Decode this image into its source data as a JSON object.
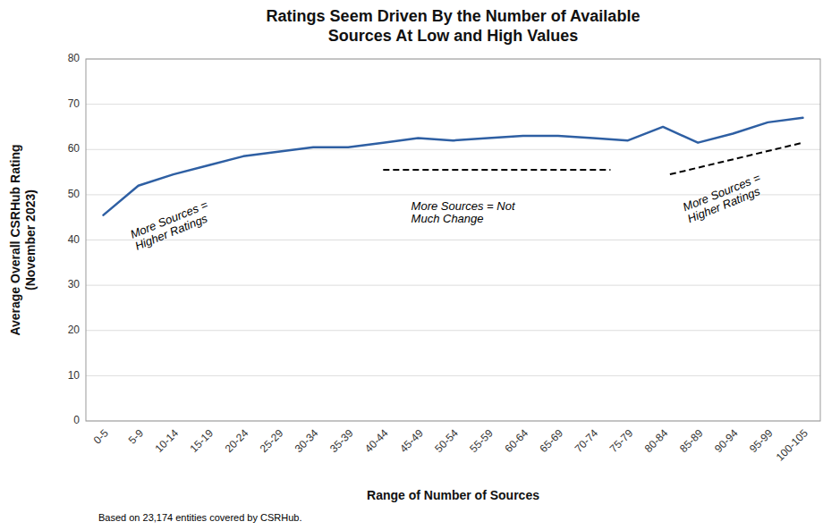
{
  "chart_data": {
    "type": "line",
    "title": "Ratings Seem Driven By the Number of Available\nSources At Low and High Values",
    "x_label": "Range of Number of Sources",
    "y_label": "Average Overall CSRHub Rating\n(November 2023)",
    "footnote": "Based on 23,174 entities covered by CSRHub.",
    "categories": [
      "0-5",
      "5-9",
      "10-14",
      "15-19",
      "20-24",
      "25-29",
      "30-34",
      "35-39",
      "40-44",
      "45-49",
      "50-54",
      "55-59",
      "60-64",
      "65-69",
      "70-74",
      "75-79",
      "80-84",
      "85-89",
      "90-94",
      "95-99",
      "100-105"
    ],
    "values": [
      45.5,
      52.0,
      54.5,
      56.5,
      58.5,
      59.5,
      60.5,
      60.5,
      61.5,
      62.5,
      62.0,
      62.5,
      63.0,
      63.0,
      62.5,
      62.0,
      65.0,
      61.5,
      63.5,
      66.0,
      67.0
    ],
    "color": "#2E5FA3",
    "ylim": [
      0,
      80
    ],
    "yticks": [
      0,
      10,
      20,
      30,
      40,
      50,
      60,
      70,
      80
    ],
    "grid": true,
    "reference_lines": [
      {
        "x_start": 8.0,
        "x_end": 14.5,
        "y_start": 55.5,
        "y_end": 55.5
      },
      {
        "x_start": 16.2,
        "x_end": 20.0,
        "y_start": 54.5,
        "y_end": 61.5
      }
    ],
    "annotations": [
      {
        "text": "More Sources =\nHigher Ratings",
        "x": 1.0,
        "y": 37.0
      },
      {
        "text": "More Sources = Not\nMuch Change",
        "x": 8.8,
        "y": 43.0
      },
      {
        "text": "More Sources =\nHigher Ratings",
        "x": 16.8,
        "y": 43.0
      }
    ]
  }
}
